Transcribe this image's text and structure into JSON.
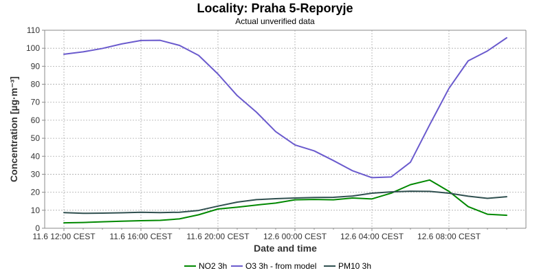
{
  "chart_data": {
    "type": "line",
    "title": "Locality: Praha 5-Reporyje",
    "subtitle": "Actual unverified data",
    "xlabel": "Date and time",
    "ylabel": "Concentration [µg·m⁻³]",
    "ylim": [
      0,
      110
    ],
    "y_ticks": [
      0,
      10,
      20,
      30,
      40,
      50,
      60,
      70,
      80,
      90,
      100,
      110
    ],
    "x_hours": [
      0,
      1,
      2,
      3,
      4,
      5,
      6,
      7,
      8,
      9,
      10,
      11,
      12,
      13,
      14,
      15,
      16,
      17,
      18,
      19,
      20,
      21,
      22,
      23
    ],
    "x_tick_hours": [
      0,
      4,
      8,
      12,
      16,
      20
    ],
    "x_tick_labels": [
      "11.6 12:00 CEST",
      "11.6 16:00 CEST",
      "11.6 20:00 CEST",
      "12.6 00:00 CEST",
      "12.6 04:00 CEST",
      "12.6 08:00 CEST"
    ],
    "xlim_hours": [
      -1,
      24
    ],
    "grid": true,
    "legend_position": "bottom",
    "series": [
      {
        "name": "NO2 3h",
        "color": "#008800",
        "values": [
          3.0,
          3.2,
          3.6,
          3.9,
          4.2,
          4.4,
          5.2,
          7.5,
          10.7,
          11.7,
          12.9,
          14.0,
          15.8,
          16.0,
          15.8,
          16.8,
          16.3,
          19.5,
          24.2,
          26.8,
          20.5,
          12.0,
          7.8,
          7.2
        ]
      },
      {
        "name": "O3 3h - from model",
        "color": "#6a5acd",
        "values": [
          96.7,
          98.0,
          99.9,
          102.4,
          104.3,
          104.4,
          101.6,
          96.0,
          85.7,
          73.7,
          64.5,
          53.7,
          46.3,
          43.0,
          37.6,
          31.9,
          28.1,
          28.5,
          36.7,
          57.5,
          77.7,
          93.0,
          98.5,
          105.8
        ]
      },
      {
        "name": "PM10 3h",
        "color": "#2f4f4f",
        "values": [
          8.7,
          8.3,
          8.4,
          8.6,
          8.9,
          8.7,
          8.9,
          9.9,
          12.3,
          14.5,
          15.9,
          16.4,
          16.8,
          17.1,
          17.2,
          17.9,
          19.5,
          20.2,
          20.6,
          20.5,
          19.5,
          17.8,
          16.6,
          17.5
        ]
      }
    ]
  }
}
